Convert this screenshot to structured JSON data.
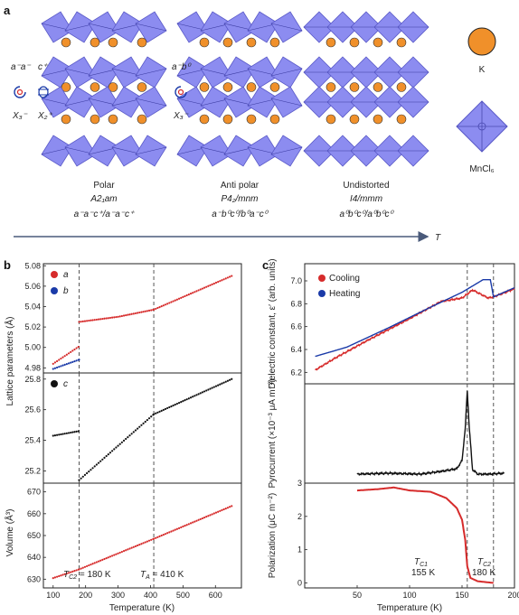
{
  "panel_a": {
    "label": "a",
    "left_notation": {
      "tilt": "a⁻a⁻",
      "rot": "c⁺",
      "x1": "X₃⁻",
      "x2": "X₂⁺"
    },
    "mid_notation": {
      "tilt": "a⁻b⁰",
      "x1": "X₃⁻"
    },
    "structures": [
      {
        "name": "Polar",
        "space_group": "A2₁am",
        "glazer": "a⁻a⁻c⁺/a⁻a⁻c⁺"
      },
      {
        "name": "Anti polar",
        "space_group": "P4₂/mnm",
        "glazer": "a⁻b⁰c⁰/b⁰a⁻c⁰"
      },
      {
        "name": "Undistorted",
        "space_group": "I4/mmm",
        "glazer": "a⁰b⁰c⁰/a⁰b⁰c⁰"
      }
    ],
    "legend_k": "K",
    "legend_mncl": "MnCl₆",
    "arrow_label": "T",
    "colors": {
      "octahedron": "#8c8cf0",
      "k_atom": "#f0902a"
    }
  },
  "panel_b": {
    "label": "b",
    "xlabel": "Temperature (K)",
    "tc2_label": "T",
    "tc2_sub": "C2",
    "tc2_text": " = 180 K",
    "ta_label": "T",
    "ta_sub": "A",
    "ta_text": " = 410 K"
  },
  "panel_c": {
    "label": "c",
    "xlabel": "Temperature (K)",
    "tc1_label": "T",
    "tc1_sub": "C1",
    "tc1_val": "155 K",
    "tc2_label": "T",
    "tc2_sub": "C2",
    "tc2_val": "180 K"
  },
  "chart_data": [
    {
      "type": "scatter",
      "panel": "b-top",
      "ylabel": "Lattice parameters (Å)",
      "xlim": [
        70,
        680
      ],
      "ylim": [
        4.975,
        5.082
      ],
      "xticks": [
        "100",
        "200",
        "300",
        "400",
        "500",
        "600"
      ],
      "yticks": [
        "4.98",
        "5.00",
        "5.02",
        "5.04",
        "5.06",
        "5.08"
      ],
      "legend": [
        {
          "name": "a",
          "color": "#d62b2b"
        },
        {
          "name": "b",
          "color": "#1a3aa8"
        }
      ],
      "series": [
        {
          "name": "a",
          "color": "#d62b2b",
          "x": [
            100,
            180,
            180,
            300,
            410,
            650
          ],
          "y": [
            4.984,
            5.001,
            5.025,
            5.03,
            5.037,
            5.07
          ]
        },
        {
          "name": "b",
          "color": "#1a3aa8",
          "x": [
            100,
            180
          ],
          "y": [
            4.979,
            4.988
          ]
        }
      ],
      "vlines": [
        180,
        410
      ]
    },
    {
      "type": "scatter",
      "panel": "b-mid",
      "xlim": [
        70,
        680
      ],
      "ylim": [
        25.12,
        25.84
      ],
      "yticks": [
        "25.2",
        "25.4",
        "25.6",
        "25.8"
      ],
      "legend": [
        {
          "name": "c",
          "color": "#111111"
        }
      ],
      "series": [
        {
          "name": "c",
          "color": "#111111",
          "x": [
            100,
            180,
            180,
            410,
            650
          ],
          "y": [
            25.43,
            25.46,
            25.14,
            25.57,
            25.8
          ]
        }
      ],
      "vlines": [
        180,
        410
      ]
    },
    {
      "type": "scatter",
      "panel": "b-bot",
      "ylabel": "Volume (Å³)",
      "xlim": [
        70,
        680
      ],
      "ylim": [
        626,
        674
      ],
      "yticks": [
        "630",
        "640",
        "650",
        "660",
        "670"
      ],
      "series": [
        {
          "name": "volume",
          "color": "#d62b2b",
          "x": [
            100,
            180,
            410,
            650
          ],
          "y": [
            630.5,
            634.5,
            648.5,
            663.5
          ]
        }
      ],
      "vlines": [
        180,
        410
      ]
    },
    {
      "type": "line",
      "panel": "c-top",
      "ylabel": "Dielectric constant, ε′ (arb. units)",
      "xlim": [
        0,
        200
      ],
      "ylim": [
        6.1,
        7.15
      ],
      "yticks": [
        "6.2",
        "6.4",
        "6.6",
        "6.8",
        "7.0"
      ],
      "legend": [
        {
          "name": "Cooling",
          "color": "#d62b2b"
        },
        {
          "name": "Heating",
          "color": "#1a3aa8"
        }
      ],
      "series": [
        {
          "name": "Cooling",
          "color": "#d62b2b",
          "x": [
            10,
            30,
            60,
            100,
            130,
            150,
            160,
            175,
            180,
            200
          ],
          "y": [
            6.22,
            6.33,
            6.48,
            6.67,
            6.82,
            6.85,
            6.92,
            6.85,
            6.86,
            6.93
          ]
        },
        {
          "name": "Heating",
          "color": "#1a3aa8",
          "x": [
            10,
            40,
            80,
            120,
            150,
            170,
            177,
            180,
            200
          ],
          "y": [
            6.34,
            6.42,
            6.59,
            6.77,
            6.9,
            7.01,
            7.01,
            6.86,
            6.94
          ]
        }
      ],
      "vlines": [
        155,
        180
      ]
    },
    {
      "type": "line",
      "panel": "c-mid",
      "ylabel": "Pyrocurrent (×10⁻³ μA m⁻²)",
      "xlim": [
        0,
        200
      ],
      "ylim": [
        -0.1,
        1.0
      ],
      "series": [
        {
          "name": "pyrocurrent",
          "color": "#111111",
          "x": [
            50,
            80,
            110,
            130,
            145,
            150,
            153,
            155,
            157,
            160,
            165,
            175,
            190
          ],
          "y": [
            0.0,
            0.01,
            0.0,
            0.03,
            0.06,
            0.15,
            0.5,
            0.92,
            0.5,
            0.05,
            0.0,
            0.0,
            0.01
          ]
        }
      ],
      "vlines": [
        155,
        180
      ]
    },
    {
      "type": "line",
      "panel": "c-bot",
      "ylabel": "Polarization (μC m⁻²)",
      "xlabel": "Temperature (K)",
      "xlim": [
        0,
        200
      ],
      "ylim": [
        -0.15,
        3.0
      ],
      "xticks": [
        "50",
        "100",
        "150",
        "200"
      ],
      "yticks": [
        "0",
        "1",
        "2",
        "3"
      ],
      "series": [
        {
          "name": "polarization",
          "color": "#d62b2b",
          "x": [
            50,
            70,
            85,
            100,
            120,
            135,
            145,
            150,
            153,
            155,
            158,
            165,
            180
          ],
          "y": [
            2.78,
            2.82,
            2.87,
            2.78,
            2.74,
            2.55,
            2.25,
            1.9,
            1.3,
            0.5,
            0.15,
            0.05,
            0.0
          ]
        }
      ],
      "vlines": [
        155,
        180
      ]
    }
  ]
}
